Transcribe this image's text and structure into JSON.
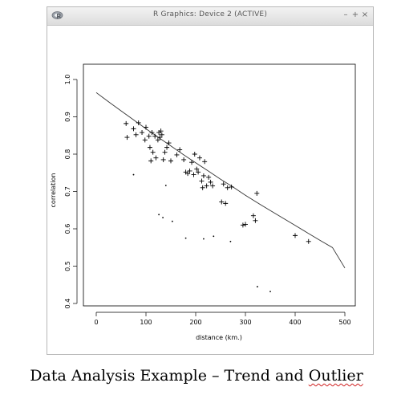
{
  "window": {
    "title": "R Graphics: Device 2 (ACTIVE)",
    "buttons": {
      "minimize": "–",
      "maximize": "+",
      "close": "×"
    }
  },
  "caption": {
    "text_before": "Data Analysis Example – Trend and ",
    "text_flagged": "Outlier"
  },
  "chart_data": {
    "type": "scatter",
    "title": "",
    "xlabel": "distance (km.)",
    "ylabel": "correlation",
    "xlim": [
      0,
      500
    ],
    "ylim": [
      0.4,
      1.0
    ],
    "xticks": [
      0,
      100,
      200,
      300,
      400,
      500
    ],
    "yticks": [
      0.4,
      0.5,
      0.6,
      0.7,
      0.8,
      0.9,
      1.0
    ],
    "grid": false,
    "legend": "none",
    "series": [
      {
        "marker": "plus",
        "points": [
          [
            60,
            0.882
          ],
          [
            62,
            0.845
          ],
          [
            75,
            0.868
          ],
          [
            80,
            0.852
          ],
          [
            85,
            0.884
          ],
          [
            92,
            0.858
          ],
          [
            98,
            0.838
          ],
          [
            100,
            0.872
          ],
          [
            106,
            0.848
          ],
          [
            108,
            0.818
          ],
          [
            110,
            0.782
          ],
          [
            112,
            0.858
          ],
          [
            114,
            0.805
          ],
          [
            118,
            0.848
          ],
          [
            120,
            0.79
          ],
          [
            124,
            0.838
          ],
          [
            126,
            0.858
          ],
          [
            128,
            0.845
          ],
          [
            130,
            0.862
          ],
          [
            132,
            0.852
          ],
          [
            135,
            0.785
          ],
          [
            138,
            0.805
          ],
          [
            142,
            0.818
          ],
          [
            146,
            0.83
          ],
          [
            150,
            0.782
          ],
          [
            162,
            0.798
          ],
          [
            168,
            0.812
          ],
          [
            176,
            0.785
          ],
          [
            180,
            0.752
          ],
          [
            184,
            0.748
          ],
          [
            188,
            0.755
          ],
          [
            192,
            0.778
          ],
          [
            196,
            0.745
          ],
          [
            198,
            0.8
          ],
          [
            202,
            0.76
          ],
          [
            205,
            0.752
          ],
          [
            208,
            0.79
          ],
          [
            212,
            0.728
          ],
          [
            214,
            0.71
          ],
          [
            216,
            0.742
          ],
          [
            218,
            0.78
          ],
          [
            222,
            0.715
          ],
          [
            226,
            0.738
          ],
          [
            230,
            0.725
          ],
          [
            234,
            0.715
          ],
          [
            252,
            0.672
          ],
          [
            256,
            0.72
          ],
          [
            260,
            0.668
          ],
          [
            264,
            0.71
          ],
          [
            272,
            0.712
          ],
          [
            295,
            0.61
          ],
          [
            300,
            0.612
          ],
          [
            316,
            0.635
          ],
          [
            320,
            0.622
          ],
          [
            323,
            0.695
          ],
          [
            400,
            0.582
          ],
          [
            427,
            0.566
          ]
        ]
      },
      {
        "marker": "dot",
        "points": [
          [
            75,
            0.745
          ],
          [
            126,
            0.638
          ],
          [
            134,
            0.63
          ],
          [
            140,
            0.716
          ],
          [
            153,
            0.62
          ],
          [
            180,
            0.575
          ],
          [
            216,
            0.573
          ],
          [
            236,
            0.58
          ],
          [
            270,
            0.566
          ],
          [
            324,
            0.445
          ],
          [
            350,
            0.432
          ]
        ]
      }
    ],
    "trend_line": {
      "x": [
        0,
        25,
        50,
        75,
        100,
        125,
        150,
        175,
        200,
        225,
        250,
        275,
        300,
        325,
        350,
        375,
        400,
        425,
        450,
        475,
        500
      ],
      "y": [
        0.965,
        0.94,
        0.916,
        0.892,
        0.868,
        0.845,
        0.822,
        0.799,
        0.777,
        0.755,
        0.733,
        0.712,
        0.69,
        0.669,
        0.649,
        0.629,
        0.609,
        0.589,
        0.569,
        0.55,
        0.495
      ]
    }
  }
}
